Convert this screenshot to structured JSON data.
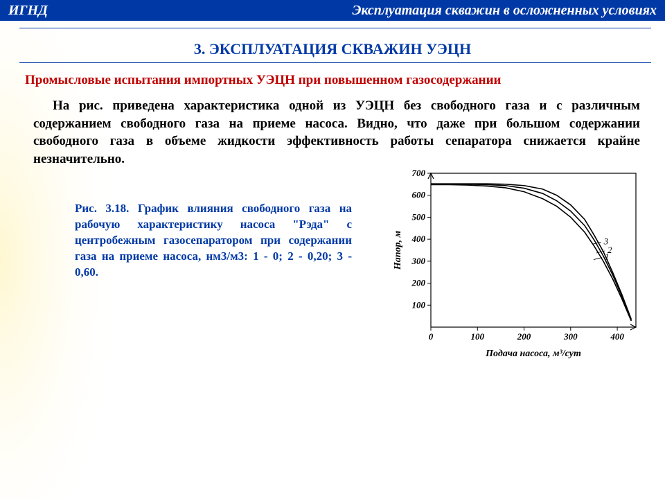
{
  "header": {
    "left": "ИГНД",
    "right": "Эксплуатация скважин в осложненных условиях",
    "band_color": "#0039a6",
    "text_color": "#ffffff"
  },
  "section_title": {
    "text": "3. ЭКСПЛУАТАЦИЯ СКВАЖИН УЭЦН",
    "color": "#0039a6"
  },
  "subhead": {
    "text": "Промысловые испытания импортных УЭЦН при повышенном газосодержании",
    "color": "#c00000"
  },
  "paragraph": {
    "text": "На рис. приведена характеристика одной из УЭЦН без свободного газа и с различным содержанием свободного газа на приеме насоса. Видно, что даже при большом содержании свободного газа в объеме жидкости эффективность работы сепаратора снижается крайне незначительно.",
    "color": "#000000"
  },
  "fig_caption": {
    "text": "Рис. 3.18. График влияния свободного газа на рабочую характеристику насоса \"Рэда\" с центробежным газосепаратором при содержании газа на приеме насоса, нм3/м3: 1 - 0; 2 - 0,20; 3 - 0,60.",
    "color": "#0039a6"
  },
  "chart": {
    "type": "line",
    "background_color": "#ffffff",
    "axis_color": "#000000",
    "line_width": 1.6,
    "tick_fontsize": 13,
    "label_fontsize": 14,
    "xlabel": "Подача насоса, м³/сут",
    "ylabel": "Напор, м",
    "xlim": [
      0,
      440
    ],
    "ylim": [
      0,
      700
    ],
    "xticks": [
      0,
      100,
      200,
      300,
      400
    ],
    "yticks": [
      100,
      200,
      300,
      400,
      500,
      600,
      700
    ],
    "series": [
      {
        "id": "1",
        "label": "1",
        "label_at": [
          370,
          320
        ],
        "color": "#000000",
        "points": [
          [
            0,
            648
          ],
          [
            40,
            648
          ],
          [
            80,
            646
          ],
          [
            120,
            642
          ],
          [
            160,
            634
          ],
          [
            200,
            616
          ],
          [
            240,
            584
          ],
          [
            270,
            550
          ],
          [
            300,
            500
          ],
          [
            330,
            432
          ],
          [
            350,
            370
          ],
          [
            370,
            300
          ],
          [
            390,
            220
          ],
          [
            410,
            128
          ],
          [
            430,
            28
          ]
        ]
      },
      {
        "id": "2",
        "label": "2",
        "label_at": [
          376,
          350
        ],
        "color": "#000000",
        "points": [
          [
            0,
            650
          ],
          [
            40,
            650
          ],
          [
            80,
            650
          ],
          [
            120,
            648
          ],
          [
            160,
            644
          ],
          [
            200,
            632
          ],
          [
            240,
            608
          ],
          [
            270,
            575
          ],
          [
            300,
            528
          ],
          [
            330,
            462
          ],
          [
            350,
            398
          ],
          [
            370,
            324
          ],
          [
            390,
            238
          ],
          [
            410,
            140
          ],
          [
            430,
            32
          ]
        ]
      },
      {
        "id": "3",
        "label": "3",
        "label_at": [
          368,
          390
        ],
        "color": "#000000",
        "points": [
          [
            0,
            652
          ],
          [
            40,
            652
          ],
          [
            80,
            652
          ],
          [
            120,
            652
          ],
          [
            160,
            650
          ],
          [
            200,
            644
          ],
          [
            240,
            628
          ],
          [
            270,
            600
          ],
          [
            300,
            556
          ],
          [
            330,
            490
          ],
          [
            350,
            420
          ],
          [
            370,
            344
          ],
          [
            390,
            250
          ],
          [
            410,
            148
          ],
          [
            430,
            36
          ]
        ]
      }
    ]
  },
  "gradient": {
    "from": "#fff7d0",
    "to": "#ffffff"
  }
}
